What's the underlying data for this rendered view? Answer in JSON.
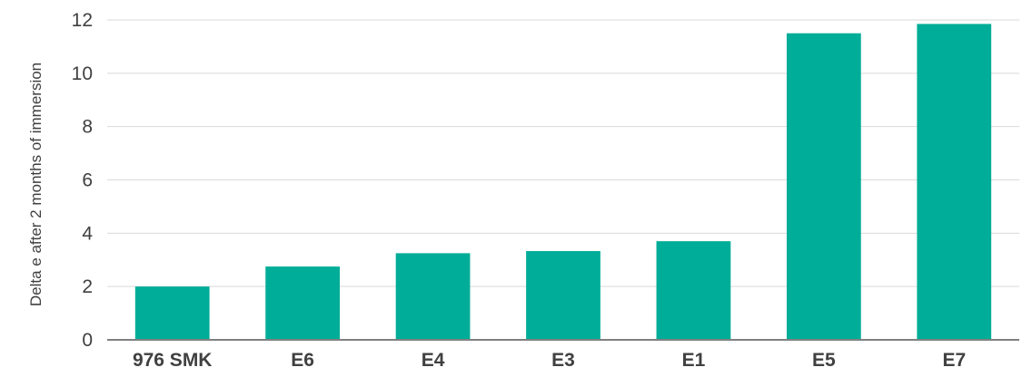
{
  "chart_data": {
    "type": "bar",
    "categories": [
      "976 SMK",
      "E6",
      "E4",
      "E3",
      "E1",
      "E5",
      "E7"
    ],
    "values": [
      2.0,
      2.75,
      3.25,
      3.33,
      3.7,
      11.5,
      11.85
    ],
    "title": "",
    "xlabel": "",
    "ylabel": "Delta e after 2 months of immersion",
    "ylim": [
      0,
      12
    ],
    "yticks": [
      "0",
      "2",
      "4",
      "6",
      "8",
      "10",
      "12"
    ],
    "grid": true,
    "bar_color": "#00AD98"
  }
}
